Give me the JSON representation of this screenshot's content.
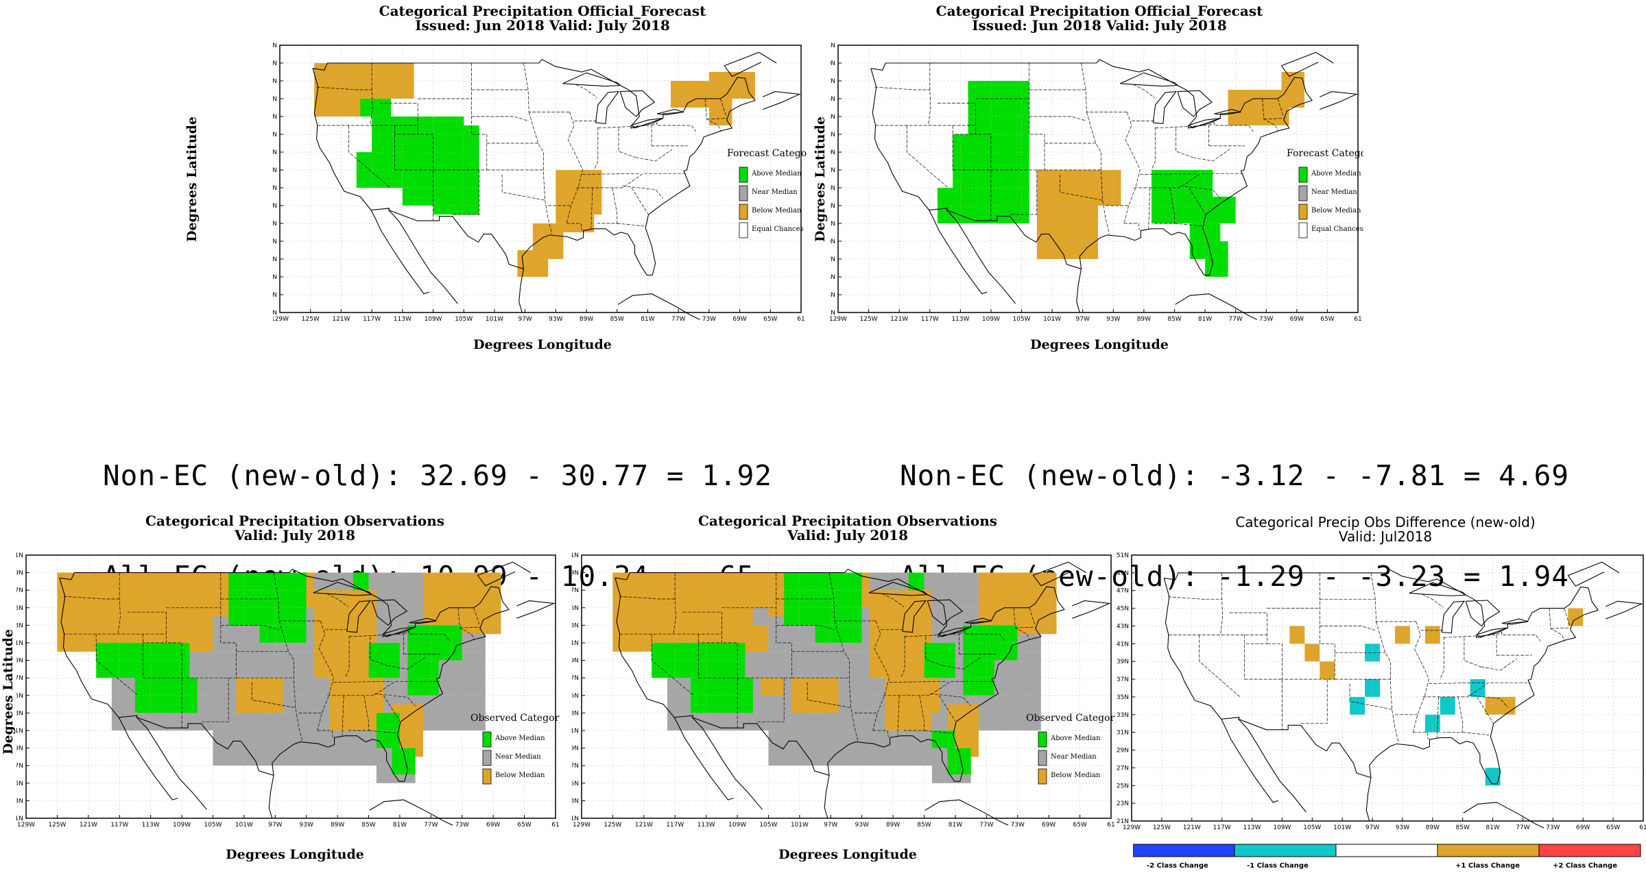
{
  "colors": {
    "above": "#00dd00",
    "near": "#a6a6a6",
    "below": "#dfa52b",
    "equal": "#ffffff",
    "minus2": "#2244ff",
    "minus1": "#11c8c8",
    "plus1": "#dfa52b",
    "plus2": "#ff4444"
  },
  "lat_ticks": [
    "51N",
    "49N",
    "47N",
    "45N",
    "43N",
    "41N",
    "39N",
    "37N",
    "35N",
    "33N",
    "31N",
    "29N",
    "27N",
    "25N",
    "23N",
    "21N"
  ],
  "lon_ticks": [
    "129W",
    "125W",
    "121W",
    "117W",
    "113W",
    "109W",
    "105W",
    "101W",
    "97W",
    "93W",
    "89W",
    "85W",
    "81W",
    "77W",
    "73W",
    "69W",
    "65W",
    "61"
  ],
  "forecast_left": {
    "title_line1": "Categorical Precipitation Official_Forecast",
    "title_line2": "Issued: Jun 2018 Valid: July 2018",
    "ylabel": "Degrees Latitude",
    "xlabel": "Degrees Longitude",
    "legend_title": "Forecast Category",
    "legend": [
      "Above Median",
      "Near Median",
      "Below Median",
      "Equal Chances"
    ]
  },
  "forecast_right": {
    "title_line1": "Categorical Precipitation Official_Forecast",
    "title_line2": "Issued: Jun 2018 Valid: July 2018",
    "ylabel": "Degrees Latitude",
    "xlabel": "Degrees Longitude",
    "legend_title": "Forecast Category",
    "legend": [
      "Above Median",
      "Near Median",
      "Below Median",
      "Equal Chances"
    ]
  },
  "scores_left": {
    "line1": "Non-EC (new-old): 32.69 - 30.77 = 1.92",
    "line2": "All-FC (new-old): 10.99 - 10.34 = .65"
  },
  "scores_right": {
    "line1": "Non-EC (new-old): -3.12 - -7.81 = 4.69",
    "line2": "All-FC (new-old): -1.29 - -3.23 = 1.94"
  },
  "obs_left": {
    "title_line1": "Categorical Precipitation Observations",
    "title_line2": "Valid: July 2018",
    "ylabel": "Degrees Latitude",
    "xlabel": "Degrees Longitude",
    "legend_title": "Observed Category",
    "legend": [
      "Above Median",
      "Near Median",
      "Below Median"
    ]
  },
  "obs_middle": {
    "title_line1": "Categorical Precipitation Observations",
    "title_line2": "Valid: July 2018",
    "xlabel": "Degrees Longitude",
    "legend_title": "Observed Category",
    "legend": [
      "Above Median",
      "Near Median",
      "Below Median"
    ]
  },
  "diff": {
    "title_line1": "Categorical Precip Obs Difference (new-old)",
    "title_line2": "Valid: Jul2018",
    "colorbar": [
      "-2 Class Change",
      "-1 Class Change",
      "+1 Class Change",
      "+2 Class Change"
    ]
  }
}
